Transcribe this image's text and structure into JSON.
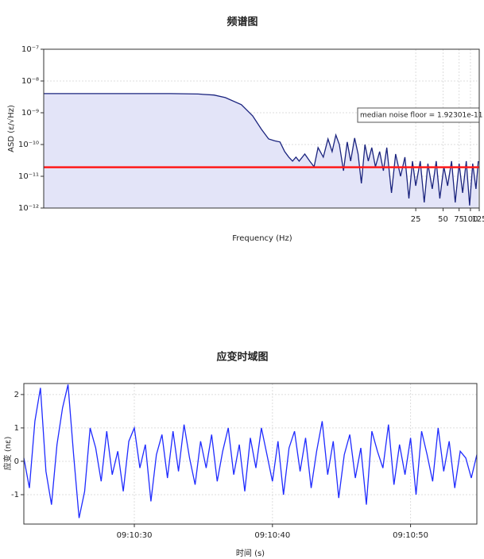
{
  "chart_data": [
    {
      "type": "line",
      "title": "频谱图",
      "xlabel": "Frequency (Hz)",
      "ylabel": "ASD (ε/√Hz)",
      "xscale": "log",
      "yscale": "log",
      "grid": true,
      "fill": true,
      "color": "#1a237e",
      "fill_color": "#e3e4f8",
      "x": [
        0.002,
        0.01,
        0.05,
        0.1,
        0.15,
        0.2,
        0.3,
        0.4,
        0.5,
        0.6,
        0.7,
        0.8,
        0.9,
        1.0,
        1.1,
        1.2,
        1.3,
        1.5,
        1.7,
        1.9,
        2.1,
        2.4,
        2.7,
        3.0,
        3.3,
        3.6,
        4.0,
        4.4,
        4.8,
        5.3,
        5.8,
        6.3,
        6.9,
        7.5,
        8.2,
        9.0,
        10,
        11,
        12,
        13.5,
        15,
        17,
        19,
        21,
        23,
        25,
        28,
        31,
        34,
        38,
        42,
        46,
        51,
        56,
        62,
        68,
        75,
        82,
        90,
        98,
        106,
        115,
        122
      ],
      "values": [
        4e-09,
        4e-09,
        4e-09,
        3.9e-09,
        3.6e-09,
        3e-09,
        1.8e-09,
        8e-10,
        3e-10,
        1.5e-10,
        1.3e-10,
        1.2e-10,
        6e-11,
        4e-11,
        3e-11,
        4e-11,
        3e-11,
        5e-11,
        3e-11,
        2e-11,
        8e-11,
        4e-11,
        1.5e-10,
        6e-11,
        2e-10,
        1e-10,
        1.5e-11,
        1.2e-10,
        3e-11,
        1.6e-10,
        5e-11,
        6e-12,
        1e-10,
        3e-11,
        8e-11,
        2e-11,
        6e-11,
        1.5e-11,
        8e-11,
        3e-12,
        5e-11,
        1e-11,
        4e-11,
        2e-12,
        3e-11,
        5e-12,
        3e-11,
        1.5e-12,
        2.5e-11,
        4e-12,
        3e-11,
        2e-12,
        2e-11,
        5e-12,
        3e-11,
        1.5e-12,
        2.5e-11,
        3e-12,
        3e-11,
        1.2e-12,
        2.5e-11,
        4e-12,
        3e-11
      ],
      "xlim": [
        0.002,
        125
      ],
      "ylim": [
        1e-12,
        1e-07
      ],
      "xticks": [
        25,
        50,
        75,
        100,
        125
      ],
      "yticks": [
        {
          "value": 1e-12,
          "label": "10⁻¹²"
        },
        {
          "value": 1e-11,
          "label": "10⁻¹¹"
        },
        {
          "value": 1e-10,
          "label": "10⁻¹⁰"
        },
        {
          "value": 1e-09,
          "label": "10⁻⁹"
        },
        {
          "value": 1e-08,
          "label": "10⁻⁸"
        },
        {
          "value": 1e-07,
          "label": "10⁻⁷"
        }
      ],
      "noise_floor": 1.92301e-11,
      "noise_floor_color": "#ff1a1a",
      "annotation": "median noise floor = 1.92301e-11"
    },
    {
      "type": "line",
      "title": "应变时域图",
      "xlabel": "时间 (s)",
      "ylabel": "应变 (nε)",
      "grid": true,
      "color": "#1f2bff",
      "x": [
        22.0,
        22.4,
        22.8,
        23.2,
        23.6,
        24.0,
        24.4,
        24.8,
        25.2,
        25.6,
        26.0,
        26.4,
        26.8,
        27.2,
        27.6,
        28.0,
        28.4,
        28.8,
        29.2,
        29.6,
        30.0,
        30.4,
        30.8,
        31.2,
        31.6,
        32.0,
        32.4,
        32.8,
        33.2,
        33.6,
        34.0,
        34.4,
        34.8,
        35.2,
        35.6,
        36.0,
        36.4,
        36.8,
        37.2,
        37.6,
        38.0,
        38.4,
        38.8,
        39.2,
        39.6,
        40.0,
        40.4,
        40.8,
        41.2,
        41.6,
        42.0,
        42.4,
        42.8,
        43.2,
        43.6,
        44.0,
        44.4,
        44.8,
        45.2,
        45.6,
        46.0,
        46.4,
        46.8,
        47.2,
        47.6,
        48.0,
        48.4,
        48.8,
        49.2,
        49.6,
        50.0,
        50.4,
        50.8,
        51.2,
        51.6,
        52.0,
        52.4,
        52.8,
        53.2,
        53.6,
        54.0,
        54.4,
        54.8
      ],
      "values": [
        0.1,
        -0.8,
        1.2,
        2.2,
        -0.3,
        -1.3,
        0.5,
        1.6,
        2.3,
        0.2,
        -1.7,
        -0.9,
        1.0,
        0.4,
        -0.6,
        0.9,
        -0.4,
        0.3,
        -0.9,
        0.6,
        1.0,
        -0.2,
        0.5,
        -1.2,
        0.2,
        0.8,
        -0.5,
        0.9,
        -0.3,
        1.1,
        0.1,
        -0.7,
        0.6,
        -0.2,
        0.8,
        -0.6,
        0.3,
        1.0,
        -0.4,
        0.5,
        -0.9,
        0.7,
        -0.2,
        1.0,
        0.2,
        -0.6,
        0.6,
        -1.0,
        0.4,
        0.9,
        -0.3,
        0.7,
        -0.8,
        0.3,
        1.2,
        -0.4,
        0.6,
        -1.1,
        0.2,
        0.8,
        -0.5,
        0.4,
        -1.3,
        0.9,
        0.3,
        -0.2,
        1.1,
        -0.7,
        0.5,
        -0.4,
        0.7,
        -1.0,
        0.9,
        0.2,
        -0.6,
        1.0,
        -0.3,
        0.6,
        -0.8,
        0.3,
        0.1,
        -0.5,
        0.2
      ],
      "xlim": [
        22,
        54.8
      ],
      "ylim": [
        -1.88,
        2.33
      ],
      "xticks": [
        {
          "value": 30,
          "label": "09:10:30"
        },
        {
          "value": 40,
          "label": "09:10:40"
        },
        {
          "value": 50,
          "label": "09:10:50"
        }
      ],
      "yticks": [
        -1,
        0,
        1,
        2
      ]
    }
  ]
}
